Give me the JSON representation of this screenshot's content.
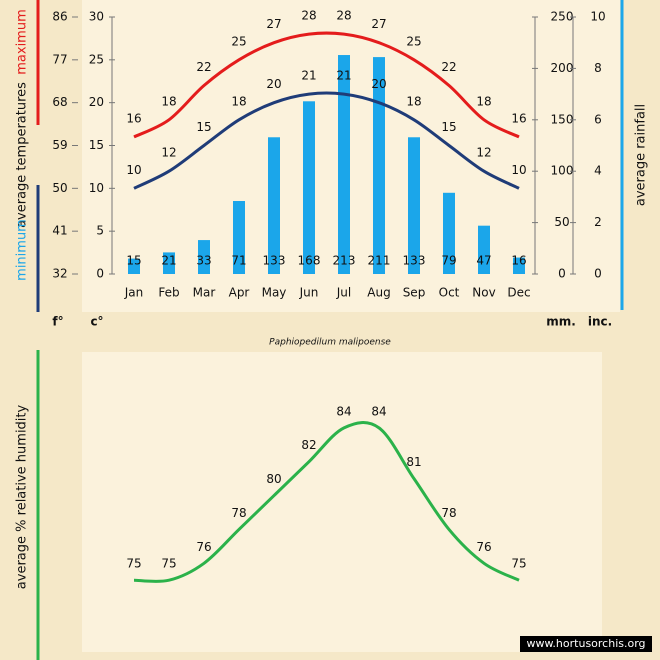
{
  "chart_data": [
    {
      "type": "bar",
      "categories": [
        "Jan",
        "Feb",
        "Mar",
        "Apr",
        "May",
        "Jun",
        "Jul",
        "Aug",
        "Sep",
        "Oct",
        "Nov",
        "Dec"
      ],
      "ylabel": "average  temperatures",
      "subtitle": "Paphiopedilum malipoense",
      "unit_f": "f°",
      "unit_c": "c°",
      "unit_mm": "mm.",
      "unit_in": "inc.",
      "ylim": [
        0,
        30
      ],
      "yticks": [
        0,
        5,
        10,
        15,
        20,
        25,
        30
      ],
      "ylim_f": [
        32,
        86
      ],
      "yticks_f": [
        32,
        41,
        50,
        59,
        68,
        77,
        86
      ],
      "y2lim": [
        0,
        250
      ],
      "y2ticks": [
        0,
        50,
        100,
        150,
        200,
        250
      ],
      "y2lim_in": [
        0,
        10
      ],
      "y2ticks_in": [
        0,
        2,
        4,
        6,
        8,
        10
      ],
      "series": [
        {
          "name": "average rainfall",
          "type": "bar",
          "axis": "y2",
          "color": "#1ba6ea",
          "values": [
            15,
            21,
            33,
            71,
            133,
            168,
            213,
            211,
            133,
            79,
            47,
            16
          ]
        },
        {
          "name": "maximum",
          "type": "line",
          "color": "#e41c1c",
          "values": [
            16,
            18,
            22,
            25,
            27,
            28,
            28,
            27,
            25,
            22,
            18,
            16
          ]
        },
        {
          "name": "minimum",
          "type": "line",
          "color": "#1f3c78",
          "values": [
            10,
            12,
            15,
            18,
            20,
            21,
            21,
            20,
            18,
            15,
            12,
            10
          ]
        }
      ]
    },
    {
      "type": "line",
      "ylabel": "average %  relative humidity",
      "ylim": [
        72,
        86
      ],
      "color": "#2bb24a",
      "values": [
        75,
        75,
        76,
        78,
        80,
        82,
        84,
        84,
        81,
        78,
        76,
        75
      ],
      "watermark": "www.hortusorchis.org"
    }
  ]
}
